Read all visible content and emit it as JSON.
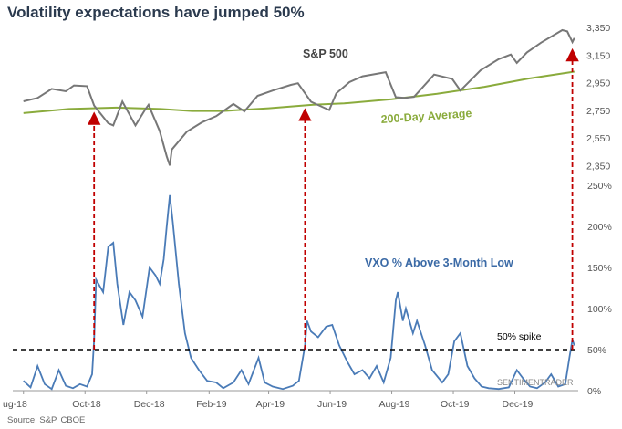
{
  "title": "Volatility expectations have jumped 50%",
  "source": "Source: S&P, CBOE",
  "watermark": "SENTIMENTRADER",
  "colors": {
    "spx": "#777777",
    "ma200": "#8aab3c",
    "vxo": "#4a7bb7",
    "arrow": "#c00000",
    "threshold": "#000000"
  },
  "chart_data": [
    {
      "type": "line",
      "panel": "top",
      "x_ticks": [
        "ug-18",
        "Oct-18",
        "Dec-18",
        "Feb-19",
        "Apr-19",
        "Jun-19",
        "Aug-19",
        "Oct-19",
        "Dec-19"
      ],
      "y_ticks": [
        "3,350",
        "3,150",
        "2,950",
        "2,750",
        "2,550",
        "2,350"
      ],
      "ylim": [
        2300,
        3380
      ],
      "series": [
        {
          "name": "S&P 500",
          "points": [
            [
              "2018-08-01",
              2815
            ],
            [
              "2018-08-15",
              2840
            ],
            [
              "2018-08-29",
              2905
            ],
            [
              "2018-09-12",
              2888
            ],
            [
              "2018-09-20",
              2930
            ],
            [
              "2018-10-03",
              2925
            ],
            [
              "2018-10-10",
              2785
            ],
            [
              "2018-10-24",
              2656
            ],
            [
              "2018-10-29",
              2641
            ],
            [
              "2018-11-07",
              2813
            ],
            [
              "2018-11-20",
              2641
            ],
            [
              "2018-11-30",
              2760
            ],
            [
              "2018-12-03",
              2790
            ],
            [
              "2018-12-14",
              2600
            ],
            [
              "2018-12-21",
              2417
            ],
            [
              "2018-12-24",
              2351
            ],
            [
              "2018-12-26",
              2467
            ],
            [
              "2019-01-10",
              2597
            ],
            [
              "2019-01-25",
              2664
            ],
            [
              "2019-02-08",
              2708
            ],
            [
              "2019-02-25",
              2796
            ],
            [
              "2019-03-08",
              2743
            ],
            [
              "2019-03-21",
              2855
            ],
            [
              "2019-04-05",
              2893
            ],
            [
              "2019-04-23",
              2934
            ],
            [
              "2019-04-30",
              2946
            ],
            [
              "2019-05-13",
              2812
            ],
            [
              "2019-05-31",
              2752
            ],
            [
              "2019-06-07",
              2873
            ],
            [
              "2019-06-20",
              2954
            ],
            [
              "2019-07-03",
              2996
            ],
            [
              "2019-07-26",
              3026
            ],
            [
              "2019-08-05",
              2845
            ],
            [
              "2019-08-14",
              2840
            ],
            [
              "2019-08-23",
              2847
            ],
            [
              "2019-09-12",
              3009
            ],
            [
              "2019-09-30",
              2977
            ],
            [
              "2019-10-08",
              2893
            ],
            [
              "2019-10-28",
              3040
            ],
            [
              "2019-11-15",
              3120
            ],
            [
              "2019-11-27",
              3154
            ],
            [
              "2019-12-03",
              3093
            ],
            [
              "2019-12-13",
              3169
            ],
            [
              "2019-12-27",
              3240
            ],
            [
              "2020-01-17",
              3330
            ],
            [
              "2020-01-22",
              3321
            ],
            [
              "2020-01-27",
              3244
            ],
            [
              "2020-01-29",
              3273
            ]
          ]
        },
        {
          "name": "200-Day Average",
          "points": [
            [
              "2018-08-01",
              2730
            ],
            [
              "2018-09-15",
              2760
            ],
            [
              "2018-11-01",
              2770
            ],
            [
              "2018-12-15",
              2760
            ],
            [
              "2019-01-15",
              2745
            ],
            [
              "2019-02-15",
              2745
            ],
            [
              "2019-04-01",
              2765
            ],
            [
              "2019-05-15",
              2790
            ],
            [
              "2019-06-15",
              2800
            ],
            [
              "2019-08-01",
              2830
            ],
            [
              "2019-09-15",
              2870
            ],
            [
              "2019-11-01",
              2920
            ],
            [
              "2019-12-15",
              2980
            ],
            [
              "2020-01-29",
              3030
            ]
          ]
        }
      ]
    },
    {
      "type": "line",
      "panel": "bottom",
      "x_ticks": [
        "ug-18",
        "Oct-18",
        "Dec-18",
        "Feb-19",
        "Apr-19",
        "Jun-19",
        "Aug-19",
        "Oct-19",
        "Dec-19"
      ],
      "y_ticks": [
        "250%",
        "200%",
        "150%",
        "100%",
        "50%",
        "0%"
      ],
      "ylim": [
        0,
        250
      ],
      "threshold": {
        "value": 50,
        "label": "50% spike"
      },
      "series": [
        {
          "name": "VXO % Above 3-Month Low",
          "points": [
            [
              "2018-08-01",
              12
            ],
            [
              "2018-08-08",
              4
            ],
            [
              "2018-08-15",
              30
            ],
            [
              "2018-08-22",
              8
            ],
            [
              "2018-08-29",
              2
            ],
            [
              "2018-09-05",
              25
            ],
            [
              "2018-09-12",
              6
            ],
            [
              "2018-09-19",
              3
            ],
            [
              "2018-09-26",
              8
            ],
            [
              "2018-10-03",
              5
            ],
            [
              "2018-10-08",
              20
            ],
            [
              "2018-10-10",
              62
            ],
            [
              "2018-10-12",
              135
            ],
            [
              "2018-10-19",
              120
            ],
            [
              "2018-10-24",
              175
            ],
            [
              "2018-10-29",
              180
            ],
            [
              "2018-11-02",
              130
            ],
            [
              "2018-11-08",
              80
            ],
            [
              "2018-11-14",
              120
            ],
            [
              "2018-11-20",
              110
            ],
            [
              "2018-11-27",
              90
            ],
            [
              "2018-12-04",
              150
            ],
            [
              "2018-12-10",
              140
            ],
            [
              "2018-12-14",
              130
            ],
            [
              "2018-12-18",
              160
            ],
            [
              "2018-12-21",
              200
            ],
            [
              "2018-12-24",
              238
            ],
            [
              "2018-12-27",
              205
            ],
            [
              "2019-01-02",
              130
            ],
            [
              "2019-01-08",
              70
            ],
            [
              "2019-01-14",
              40
            ],
            [
              "2019-01-22",
              25
            ],
            [
              "2019-01-30",
              12
            ],
            [
              "2019-02-08",
              10
            ],
            [
              "2019-02-15",
              3
            ],
            [
              "2019-02-25",
              10
            ],
            [
              "2019-03-05",
              25
            ],
            [
              "2019-03-12",
              8
            ],
            [
              "2019-03-22",
              40
            ],
            [
              "2019-03-28",
              10
            ],
            [
              "2019-04-05",
              5
            ],
            [
              "2019-04-15",
              2
            ],
            [
              "2019-04-25",
              6
            ],
            [
              "2019-05-01",
              12
            ],
            [
              "2019-05-07",
              55
            ],
            [
              "2019-05-09",
              85
            ],
            [
              "2019-05-13",
              72
            ],
            [
              "2019-05-20",
              65
            ],
            [
              "2019-05-28",
              78
            ],
            [
              "2019-06-03",
              80
            ],
            [
              "2019-06-10",
              55
            ],
            [
              "2019-06-18",
              35
            ],
            [
              "2019-06-25",
              20
            ],
            [
              "2019-07-03",
              25
            ],
            [
              "2019-07-10",
              15
            ],
            [
              "2019-07-17",
              30
            ],
            [
              "2019-07-24",
              10
            ],
            [
              "2019-07-31",
              40
            ],
            [
              "2019-08-05",
              110
            ],
            [
              "2019-08-07",
              120
            ],
            [
              "2019-08-12",
              85
            ],
            [
              "2019-08-15",
              100
            ],
            [
              "2019-08-22",
              70
            ],
            [
              "2019-08-26",
              85
            ],
            [
              "2019-09-03",
              55
            ],
            [
              "2019-09-10",
              25
            ],
            [
              "2019-09-20",
              10
            ],
            [
              "2019-09-26",
              20
            ],
            [
              "2019-10-02",
              60
            ],
            [
              "2019-10-08",
              70
            ],
            [
              "2019-10-15",
              30
            ],
            [
              "2019-10-22",
              15
            ],
            [
              "2019-10-29",
              5
            ],
            [
              "2019-11-05",
              3
            ],
            [
              "2019-11-15",
              2
            ],
            [
              "2019-11-25",
              4
            ],
            [
              "2019-12-03",
              25
            ],
            [
              "2019-12-09",
              15
            ],
            [
              "2019-12-16",
              5
            ],
            [
              "2019-12-23",
              3
            ],
            [
              "2019-12-31",
              10
            ],
            [
              "2020-01-06",
              20
            ],
            [
              "2020-01-13",
              5
            ],
            [
              "2020-01-20",
              8
            ],
            [
              "2020-01-24",
              40
            ],
            [
              "2020-01-27",
              62
            ],
            [
              "2020-01-29",
              55
            ]
          ]
        }
      ],
      "spike_dates": [
        "2018-10-10",
        "2019-05-07",
        "2020-01-27"
      ]
    }
  ]
}
